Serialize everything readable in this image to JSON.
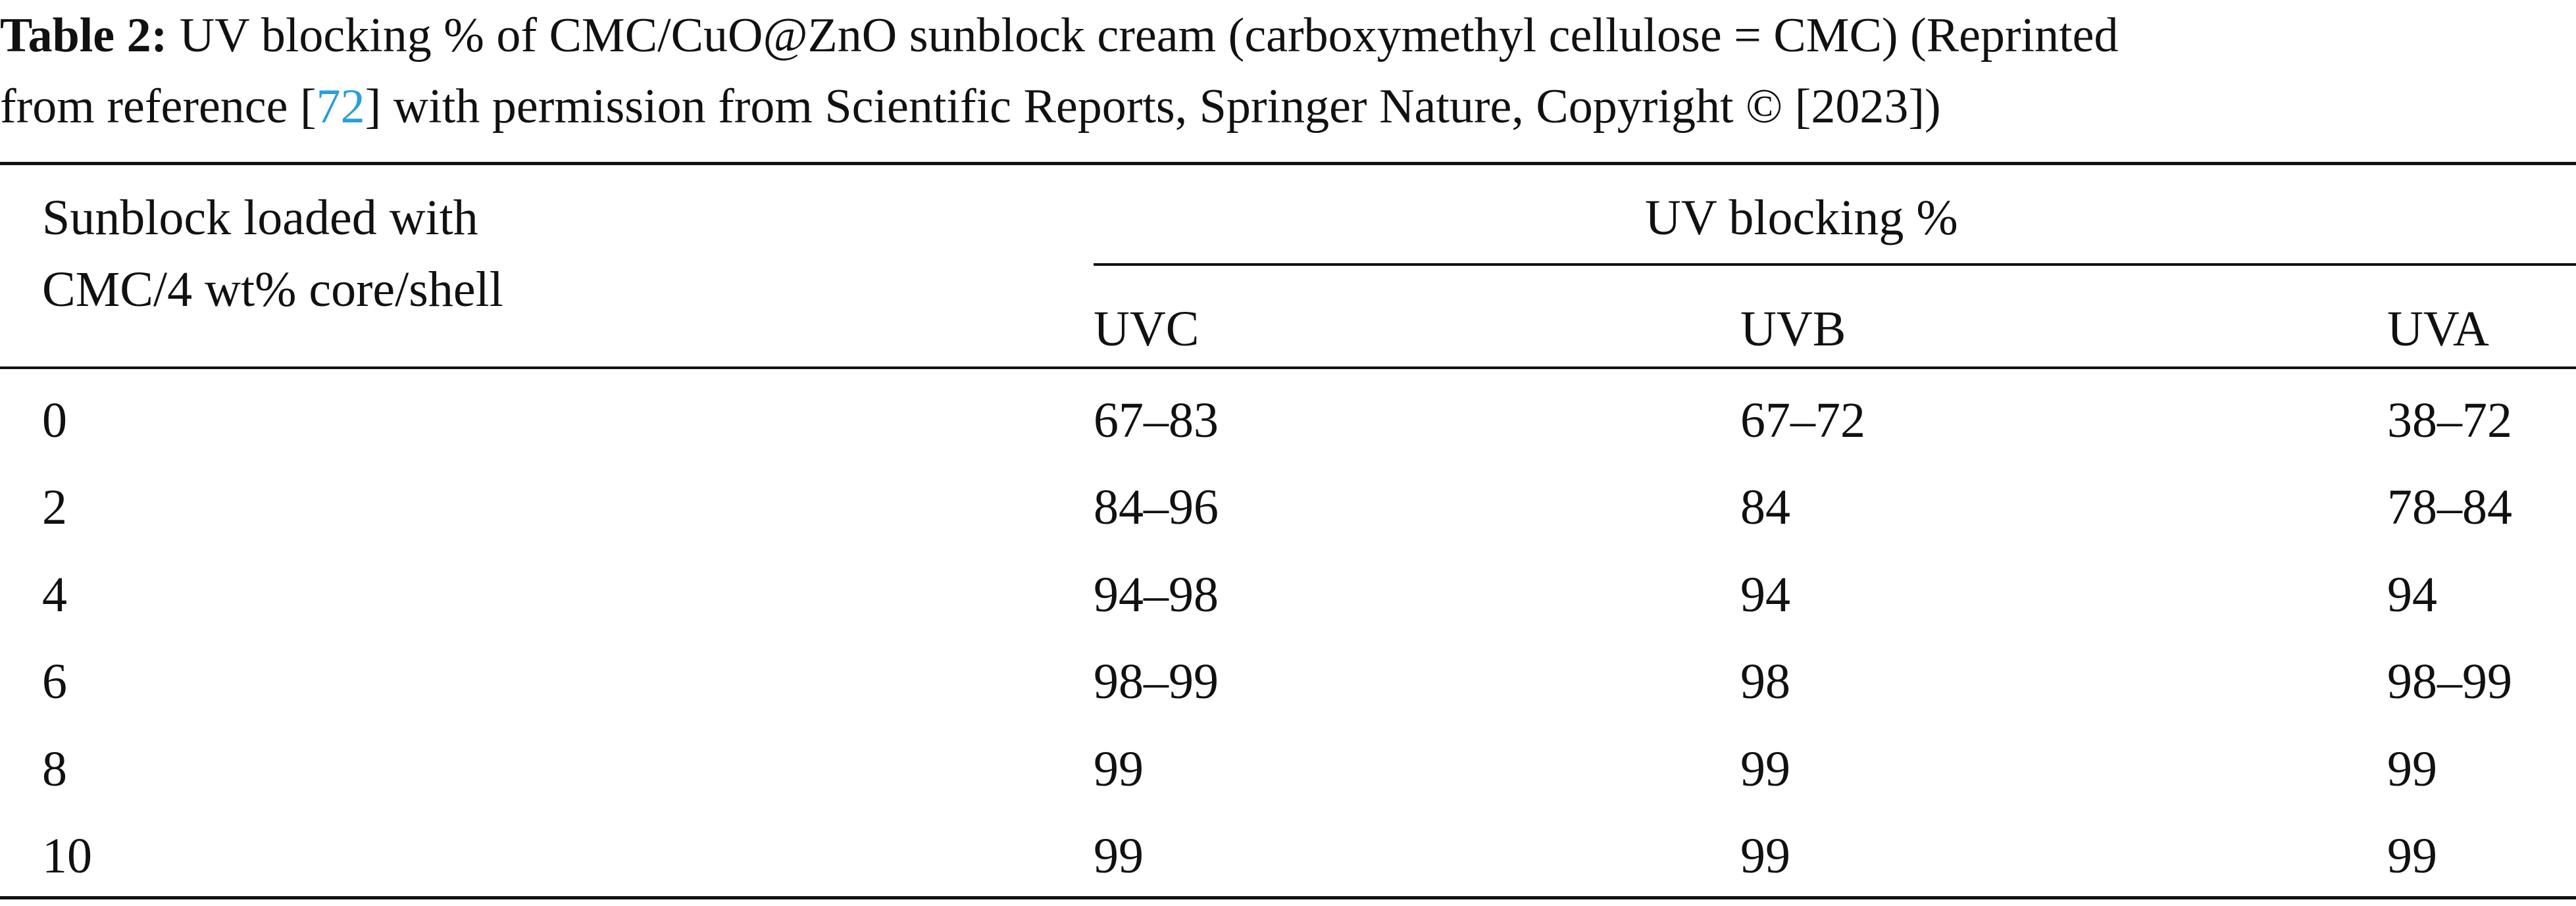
{
  "caption": {
    "label": "Table 2:",
    "line1_text": " UV blocking % of CMC/CuO@ZnO sunblock cream (carboxymethyl cellulose = CMC) (Reprinted",
    "line2_before_ref": "from reference [",
    "ref_number": "72",
    "line2_after_ref": "] with permission from Scientific Reports, Springer Nature, Copyright © [2023])"
  },
  "table": {
    "row_header_line1": "Sunblock loaded with",
    "row_header_line2": "CMC/4 wt% core/shell",
    "group_header": "UV blocking %",
    "columns": [
      "UVC",
      "UVB",
      "UVA"
    ],
    "rows": [
      {
        "load": "0",
        "uvc": "67–83",
        "uvb": "67–72",
        "uva": "38–72"
      },
      {
        "load": "2",
        "uvc": "84–96",
        "uvb": "84",
        "uva": "78–84"
      },
      {
        "load": "4",
        "uvc": "94–98",
        "uvb": "94",
        "uva": "94"
      },
      {
        "load": "6",
        "uvc": "98–99",
        "uvb": "98",
        "uva": "98–99"
      },
      {
        "load": "8",
        "uvc": "99",
        "uvb": "99",
        "uva": "99"
      },
      {
        "load": "10",
        "uvc": "99",
        "uvb": "99",
        "uva": "99"
      }
    ]
  }
}
